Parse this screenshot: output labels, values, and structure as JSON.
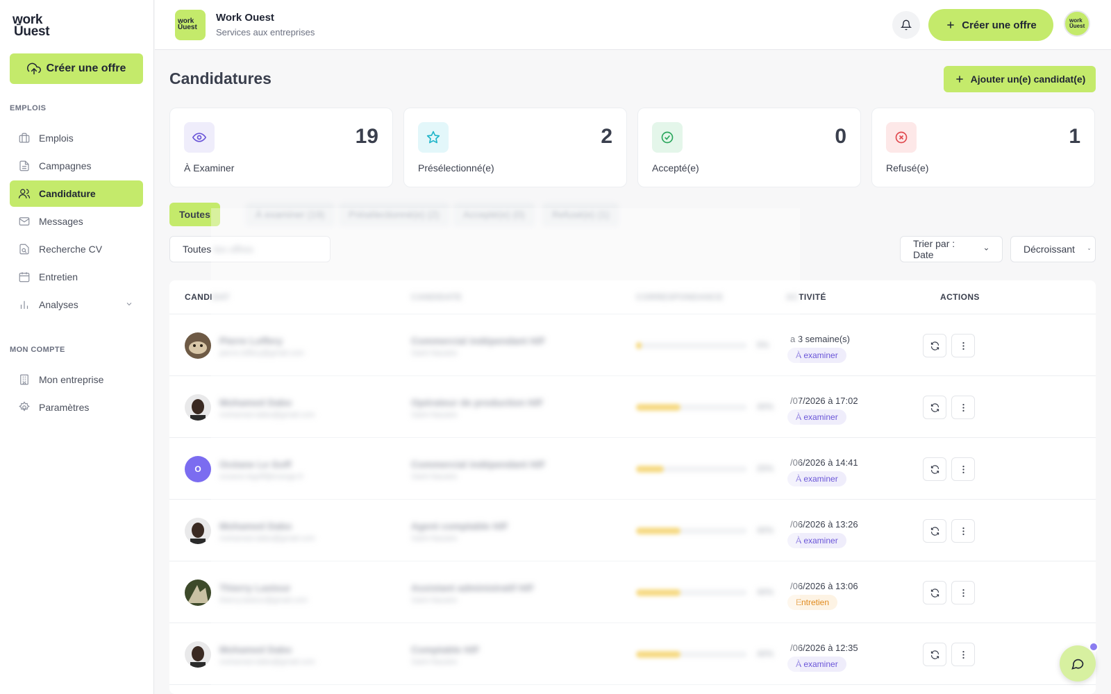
{
  "brand": {
    "logo_line1": "work",
    "logo_line2": "Ūuest"
  },
  "sidebar": {
    "cta_label": "Créer une offre",
    "section_jobs": "EMPLOIS",
    "section_account": "MON COMPTE",
    "items": [
      {
        "label": "Emplois",
        "icon": "briefcase-icon"
      },
      {
        "label": "Campagnes",
        "icon": "document-icon"
      },
      {
        "label": "Candidature",
        "icon": "users-icon"
      },
      {
        "label": "Messages",
        "icon": "mail-icon"
      },
      {
        "label": "Recherche CV",
        "icon": "search-document-icon"
      },
      {
        "label": "Entretien",
        "icon": "calendar-icon"
      },
      {
        "label": "Analyses",
        "icon": "chart-icon"
      }
    ],
    "account_items": [
      {
        "label": "Mon entreprise",
        "icon": "building-icon"
      },
      {
        "label": "Paramètres",
        "icon": "gear-icon"
      }
    ]
  },
  "header": {
    "company_name": "Work Ouest",
    "company_sub": "Services aux entreprises",
    "cta_label": "Créer une offre",
    "logo_line1": "work",
    "logo_line2": "Ūuest"
  },
  "page": {
    "title": "Candidatures",
    "add_button": "Ajouter un(e) candidat(e)"
  },
  "stats": [
    {
      "label": "À Examiner",
      "value": "19",
      "color": "#6a55d8",
      "bg": "#efedfb"
    },
    {
      "label": "Présélectionné(e)",
      "value": "2",
      "color": "#1fb5c9",
      "bg": "#e3f7fa"
    },
    {
      "label": "Accepté(e)",
      "value": "0",
      "color": "#2aa65c",
      "bg": "#e4f6ea"
    },
    {
      "label": "Refusé(e)",
      "value": "1",
      "color": "#e0484d",
      "bg": "#fde8e8"
    }
  ],
  "tabs": [
    {
      "label": "Toutes"
    },
    {
      "label": "À examiner (19)"
    },
    {
      "label": "Présélectionné(e) (2)"
    },
    {
      "label": "Accepté(e) (0)"
    },
    {
      "label": "Refusé(e) (1)"
    }
  ],
  "filters": {
    "offer_value": "Toutes",
    "offer_value_hidden": "les offres",
    "sort_value": "Trier par : Date",
    "order_value": "Décroissant"
  },
  "table": {
    "headers": {
      "candidate": "CANDI",
      "candidate_hidden": "DAT",
      "position": "CANDIDATE",
      "match": "CORRESPONDANCE",
      "activity": "TIVITÉ",
      "activity_hidden": "AC",
      "actions": "ACTIONS"
    },
    "rows": [
      {
        "name": "Pierre Loffery",
        "email": "pierre.loffery@gmail.com",
        "position": "Commercial indépendant H/F",
        "place": "Saint-Nazaire",
        "match": 0.05,
        "match_label": "5%",
        "date": "a 3 semaine(s)",
        "status": "À examiner",
        "status_kind": "exam",
        "avatar_kind": "photo-cat"
      },
      {
        "name": "Mohamed Dabo",
        "email": "mohamed.dabo@gmail.com",
        "position": "Opérateur de production H/F",
        "place": "Saint-Nazaire",
        "match": 0.4,
        "match_label": "40%",
        "date": "/07/2026 à 17:02",
        "status": "À examiner",
        "status_kind": "exam",
        "avatar_kind": "photo-man"
      },
      {
        "name": "Océane Le Goff",
        "email": "oceane.legoff@orange.fr",
        "position": "Commercial indépendant H/F",
        "place": "Saint-Nazaire",
        "match": 0.25,
        "match_label": "25%",
        "date": "/06/2026 à 14:41",
        "status": "À examiner",
        "status_kind": "exam",
        "avatar_kind": "initial",
        "initial": "O"
      },
      {
        "name": "Mohamed Dabo",
        "email": "mohamed.dabo@gmail.com",
        "position": "Agent comptable H/F",
        "place": "Saint-Nazaire",
        "match": 0.4,
        "match_label": "40%",
        "date": "/06/2026 à 13:26",
        "status": "À examiner",
        "status_kind": "exam",
        "avatar_kind": "photo-man"
      },
      {
        "name": "Thierry Lastour",
        "email": "thierry.lastour@gmail.com",
        "position": "Assistant administratif H/F",
        "place": "Saint-Nazaire",
        "match": 0.4,
        "match_label": "40%",
        "date": "/06/2026 à 13:06",
        "status": "Entretien",
        "status_kind": "entre",
        "avatar_kind": "photo-nature"
      },
      {
        "name": "Mohamed Dabo",
        "email": "mohamed.dabo@gmail.com",
        "position": "Comptable H/F",
        "place": "Saint-Nazaire",
        "match": 0.4,
        "match_label": "40%",
        "date": "/06/2026 à 12:35",
        "status": "À examiner",
        "status_kind": "exam",
        "avatar_kind": "photo-man"
      }
    ]
  }
}
